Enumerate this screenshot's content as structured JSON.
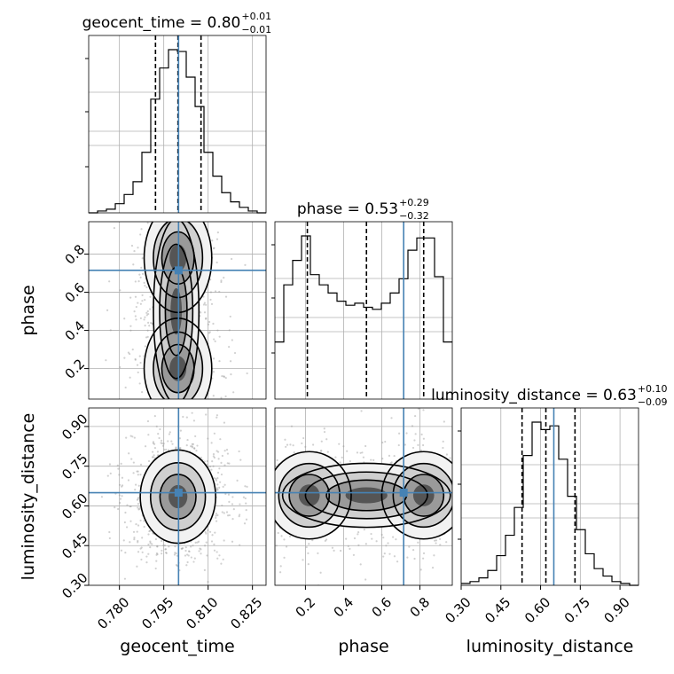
{
  "chart_data": {
    "type": "corner",
    "parameters": [
      "geocent_time",
      "phase",
      "luminosity_distance"
    ],
    "truths": {
      "geocent_time": 0.8,
      "phase": 0.715,
      "luminosity_distance": 0.65
    },
    "colors": {
      "truth": "#4682b4",
      "hist": "#000000",
      "grid": "#b0b0b0",
      "points": "#9a9a9a"
    },
    "titles": {
      "geocent_time": {
        "label": "geocent_time = 0.80",
        "plus": "+0.01",
        "minus": "−0.01"
      },
      "phase": {
        "label": "phase = 0.53",
        "plus": "+0.29",
        "minus": "−0.32"
      },
      "luminosity_distance": {
        "label": "luminosity_distance = 0.63",
        "plus": "+0.10",
        "minus": "−0.09"
      }
    },
    "axis_ranges": {
      "geocent_time": [
        0.7696,
        0.8296
      ],
      "phase": [
        0.04,
        0.97
      ],
      "luminosity_distance": [
        0.3,
        0.97
      ]
    },
    "ticks": {
      "geocent_time": {
        "values": [
          0.78,
          0.795,
          0.81,
          0.825
        ],
        "labels": [
          "0.780",
          "0.795",
          "0.810",
          "0.825"
        ]
      },
      "phase": {
        "values": [
          0.2,
          0.4,
          0.6,
          0.8
        ],
        "labels": [
          "0.2",
          "0.4",
          "0.6",
          "0.8"
        ]
      },
      "luminosity_distance": {
        "values": [
          0.3,
          0.45,
          0.6,
          0.75,
          0.9
        ],
        "labels": [
          "0.30",
          "0.45",
          "0.60",
          "0.75",
          "0.90"
        ]
      }
    },
    "quantiles": {
      "geocent_time": [
        0.7922,
        0.7998,
        0.8076
      ],
      "phase": [
        0.21,
        0.52,
        0.82
      ],
      "luminosity_distance": [
        0.53,
        0.62,
        0.73
      ]
    },
    "histograms": {
      "geocent_time": {
        "bin_edges": [
          0.7696,
          0.7726,
          0.7756,
          0.7786,
          0.7816,
          0.7846,
          0.7876,
          0.7906,
          0.7936,
          0.7966,
          0.7996,
          0.8026,
          0.8056,
          0.8086,
          0.8116,
          0.8146,
          0.8176,
          0.8206,
          0.8236,
          0.8266,
          0.8296
        ],
        "counts": [
          0,
          1,
          2,
          5,
          10,
          17,
          33,
          62,
          79,
          89,
          88,
          74,
          58,
          33,
          20,
          11,
          6,
          3,
          1,
          0
        ]
      },
      "phase": {
        "bin_edges": [
          0.04,
          0.0865,
          0.133,
          0.1795,
          0.226,
          0.2725,
          0.319,
          0.3655,
          0.412,
          0.4585,
          0.505,
          0.5515,
          0.598,
          0.6445,
          0.691,
          0.7375,
          0.784,
          0.8305,
          0.877,
          0.9235,
          0.97
        ],
        "counts": [
          28,
          56,
          68,
          80,
          61,
          56,
          52,
          48,
          46,
          47,
          45,
          44,
          47,
          52,
          59,
          73,
          79,
          79,
          60,
          28
        ]
      },
      "luminosity_distance": {
        "bin_edges": [
          0.3,
          0.3335,
          0.367,
          0.4005,
          0.434,
          0.4675,
          0.501,
          0.5345,
          0.568,
          0.6015,
          0.635,
          0.6685,
          0.702,
          0.7355,
          0.769,
          0.8025,
          0.836,
          0.8695,
          0.903,
          0.9365,
          0.97
        ],
        "counts": [
          1,
          2,
          4,
          8,
          16,
          27,
          42,
          70,
          88,
          84,
          86,
          68,
          48,
          30,
          17,
          9,
          5,
          2,
          1,
          0
        ]
      }
    },
    "contour_pairs": [
      {
        "x": "geocent_time",
        "y": "phase"
      },
      {
        "x": "geocent_time",
        "y": "luminosity_distance"
      },
      {
        "x": "phase",
        "y": "luminosity_distance"
      }
    ],
    "grid": true
  }
}
